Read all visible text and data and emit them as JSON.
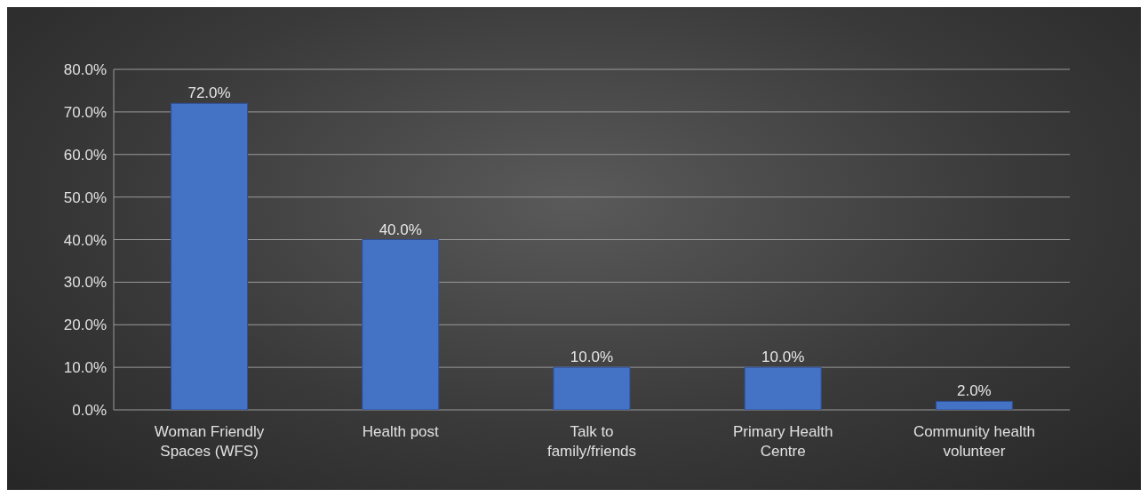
{
  "chart_data": {
    "type": "bar",
    "categories": [
      "Woman Friendly Spaces (WFS)",
      "Health post",
      "Talk to family/friends",
      "Primary Health Centre",
      "Community health volunteer"
    ],
    "values": [
      72,
      40,
      10,
      10,
      2
    ],
    "color": "#4472c4",
    "value_labels": [
      "72.0%",
      "40.0%",
      "10.0%",
      "10.0%",
      "2.0%"
    ],
    "ylim": [
      0,
      80
    ],
    "yticks": [
      {
        "value": 0,
        "label": "0.0%"
      },
      {
        "value": 10,
        "label": "10.0%"
      },
      {
        "value": 20,
        "label": "20.0%"
      },
      {
        "value": 30,
        "label": "30.0%"
      },
      {
        "value": 40,
        "label": "40.0%"
      },
      {
        "value": 50,
        "label": "50.0%"
      },
      {
        "value": 60,
        "label": "60.0%"
      },
      {
        "value": 70,
        "label": "70.0%"
      },
      {
        "value": 80,
        "label": "80.0%"
      }
    ],
    "grid": "y"
  }
}
